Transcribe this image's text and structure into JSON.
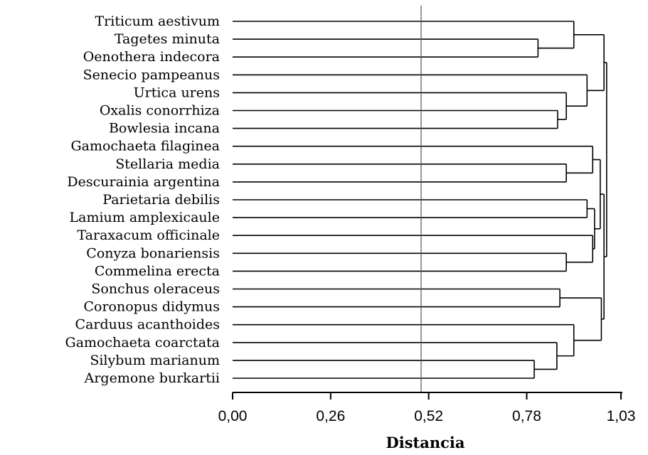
{
  "chart_data": {
    "type": "dendrogram",
    "xlabel": "Distancia",
    "xlim": [
      0,
      1.03
    ],
    "ticks": [
      "0,00",
      "0,26",
      "0,52",
      "0,78",
      "1,03"
    ],
    "tick_values": [
      0,
      0.26,
      0.52,
      0.78,
      1.03
    ],
    "reference_line": 0.5,
    "leaves": [
      "Triticum aestivum",
      "Tagetes minuta",
      "Oenothera indecora",
      "Senecio pampeanus",
      "Urtica urens",
      "Oxalis conorrhiza",
      "Bowlesia incana",
      "Gamochaeta filaginea",
      "Stellaria media",
      "Descurainia argentina",
      "Parietaria debilis",
      "Lamium amplexicaule",
      "Taraxacum officinale",
      "Conyza bonariensis",
      "Commelina erecta",
      "Sonchus oleraceus",
      "Coronopus didymus",
      "Carduus acanthoides",
      "Gamochaeta coarctata",
      "Silybum marianum",
      "Argemone burkartii"
    ],
    "merges": [
      {
        "children": [
          "L1",
          "L2"
        ],
        "height": 0.81
      },
      {
        "children": [
          "L0",
          "N0"
        ],
        "height": 0.905
      },
      {
        "children": [
          "L5",
          "L6"
        ],
        "height": 0.862
      },
      {
        "children": [
          "L4",
          "N2"
        ],
        "height": 0.885
      },
      {
        "children": [
          "L3",
          "N3"
        ],
        "height": 0.94
      },
      {
        "children": [
          "N1",
          "N4"
        ],
        "height": 0.985
      },
      {
        "children": [
          "L8",
          "L9"
        ],
        "height": 0.885
      },
      {
        "children": [
          "L7",
          "N6"
        ],
        "height": 0.955
      },
      {
        "children": [
          "L10",
          "L11"
        ],
        "height": 0.94
      },
      {
        "children": [
          "L13",
          "L14"
        ],
        "height": 0.885
      },
      {
        "children": [
          "L12",
          "N9"
        ],
        "height": 0.955
      },
      {
        "children": [
          "N8",
          "N10"
        ],
        "height": 0.96
      },
      {
        "children": [
          "N7",
          "N11"
        ],
        "height": 0.975
      },
      {
        "children": [
          "L15",
          "L16"
        ],
        "height": 0.868
      },
      {
        "children": [
          "L19",
          "L20"
        ],
        "height": 0.8
      },
      {
        "children": [
          "L18",
          "N14"
        ],
        "height": 0.86
      },
      {
        "children": [
          "L17",
          "N15"
        ],
        "height": 0.905
      },
      {
        "children": [
          "N13",
          "N16"
        ],
        "height": 0.978
      },
      {
        "children": [
          "N12",
          "N17"
        ],
        "height": 0.985
      },
      {
        "children": [
          "N5",
          "N18"
        ],
        "height": 0.992
      }
    ]
  }
}
